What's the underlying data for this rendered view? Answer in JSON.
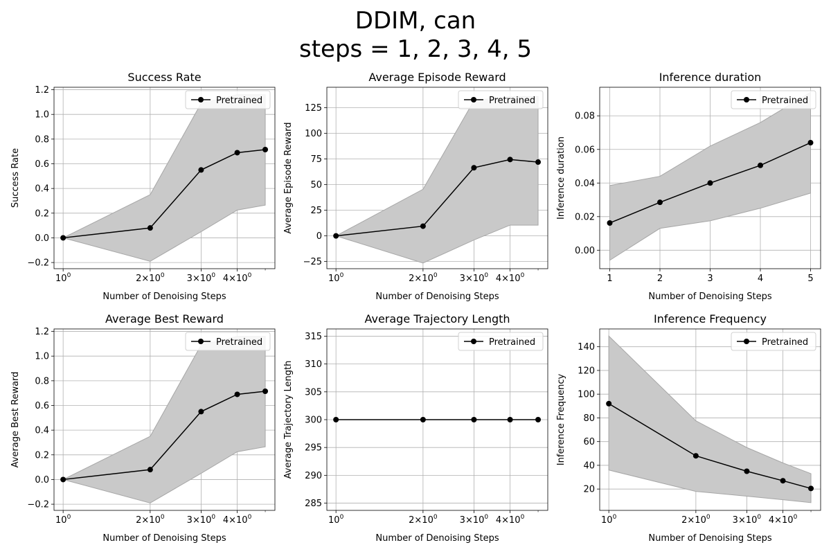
{
  "title_line1": "DDIM, can",
  "title_line2": "steps = 1, 2, 3, 4, 5",
  "colors": {
    "line": "#000000",
    "band": "#c9c9c9",
    "band_edge": "#a6a6a6",
    "grid": "#b0b0b0"
  },
  "chart_data": [
    {
      "type": "line",
      "title": "Success Rate",
      "xlabel": "Number of Denoising Steps",
      "ylabel": "Success Rate",
      "xscale": "log",
      "xlim": [
        0.93,
        5.4
      ],
      "ylim": [
        -0.25,
        1.22
      ],
      "xticks": [
        1,
        2,
        3,
        4
      ],
      "xticklabels": [
        "10^0",
        "2×10^0",
        "3×10^0",
        "4×10^0"
      ],
      "yticks": [
        -0.2,
        0.0,
        0.2,
        0.4,
        0.6,
        0.8,
        1.0,
        1.2
      ],
      "yticklabels": [
        "−0.2",
        "0.0",
        "0.2",
        "0.4",
        "0.6",
        "0.8",
        "1.0",
        "1.2"
      ],
      "grid": true,
      "legend": "top-right",
      "series": [
        {
          "name": "Pretrained",
          "x": [
            1,
            2,
            3,
            4,
            5
          ],
          "y": [
            0.0,
            0.08,
            0.55,
            0.69,
            0.715
          ],
          "band_low": [
            0.0,
            -0.19,
            0.05,
            0.225,
            0.265
          ],
          "band_high": [
            0.0,
            0.35,
            1.09,
            1.16,
            1.16
          ]
        }
      ]
    },
    {
      "type": "line",
      "title": "Average Episode Reward",
      "xlabel": "Number of Denoising Steps",
      "ylabel": "Average Episode Reward",
      "xscale": "log",
      "xlim": [
        0.93,
        5.4
      ],
      "ylim": [
        -32,
        145
      ],
      "xticks": [
        1,
        2,
        3,
        4
      ],
      "xticklabels": [
        "10^0",
        "2×10^0",
        "3×10^0",
        "4×10^0"
      ],
      "yticks": [
        -25,
        0,
        25,
        50,
        75,
        100,
        125
      ],
      "yticklabels": [
        "−25",
        "0",
        "25",
        "50",
        "75",
        "100",
        "125"
      ],
      "grid": true,
      "legend": "top-right",
      "series": [
        {
          "name": "Pretrained",
          "x": [
            1,
            2,
            3,
            4,
            5
          ],
          "y": [
            0,
            9.5,
            66.5,
            74.5,
            72
          ],
          "band_low": [
            0,
            -26.5,
            -4,
            10.5,
            10.5
          ],
          "band_high": [
            0,
            45.5,
            132,
            136,
            136
          ]
        }
      ]
    },
    {
      "type": "line",
      "title": "Inference duration",
      "xlabel": "Number of Denoising Steps",
      "ylabel": "Inference duration",
      "xscale": "linear",
      "xlim": [
        0.8,
        5.2
      ],
      "ylim": [
        -0.011,
        0.097
      ],
      "xticks": [
        1,
        2,
        3,
        4,
        5
      ],
      "xticklabels": [
        "1",
        "2",
        "3",
        "4",
        "5"
      ],
      "yticks": [
        0.0,
        0.02,
        0.04,
        0.06,
        0.08
      ],
      "yticklabels": [
        "0.00",
        "0.02",
        "0.04",
        "0.06",
        "0.08"
      ],
      "grid": true,
      "legend": "top-right",
      "series": [
        {
          "name": "Pretrained",
          "x": [
            1,
            2,
            3,
            4,
            5
          ],
          "y": [
            0.0162,
            0.0285,
            0.04,
            0.0505,
            0.064
          ],
          "band_low": [
            -0.006,
            0.013,
            0.0175,
            0.025,
            0.034
          ],
          "band_high": [
            0.0385,
            0.044,
            0.062,
            0.076,
            0.094
          ]
        }
      ]
    },
    {
      "type": "line",
      "title": "Average Best Reward",
      "xlabel": "Number of Denoising Steps",
      "ylabel": "Average Best Reward",
      "xscale": "log",
      "xlim": [
        0.93,
        5.4
      ],
      "ylim": [
        -0.25,
        1.22
      ],
      "xticks": [
        1,
        2,
        3,
        4
      ],
      "xticklabels": [
        "10^0",
        "2×10^0",
        "3×10^0",
        "4×10^0"
      ],
      "yticks": [
        -0.2,
        0.0,
        0.2,
        0.4,
        0.6,
        0.8,
        1.0,
        1.2
      ],
      "yticklabels": [
        "−0.2",
        "0.0",
        "0.2",
        "0.4",
        "0.6",
        "0.8",
        "1.0",
        "1.2"
      ],
      "grid": true,
      "legend": "top-right",
      "series": [
        {
          "name": "Pretrained",
          "x": [
            1,
            2,
            3,
            4,
            5
          ],
          "y": [
            0.0,
            0.08,
            0.55,
            0.69,
            0.715
          ],
          "band_low": [
            0.0,
            -0.19,
            0.05,
            0.225,
            0.265
          ],
          "band_high": [
            0.0,
            0.35,
            1.09,
            1.16,
            1.16
          ]
        }
      ]
    },
    {
      "type": "line",
      "title": "Average Trajectory Length",
      "xlabel": "Number of Denoising Steps",
      "ylabel": "Average Trajectory Length",
      "xscale": "log",
      "xlim": [
        0.93,
        5.4
      ],
      "ylim": [
        283.7,
        316.3
      ],
      "xticks": [
        1,
        2,
        3,
        4
      ],
      "xticklabels": [
        "10^0",
        "2×10^0",
        "3×10^0",
        "4×10^0"
      ],
      "yticks": [
        285,
        290,
        295,
        300,
        305,
        310,
        315
      ],
      "yticklabels": [
        "285",
        "290",
        "295",
        "300",
        "305",
        "310",
        "315"
      ],
      "grid": true,
      "legend": "top-right",
      "series": [
        {
          "name": "Pretrained",
          "x": [
            1,
            2,
            3,
            4,
            5
          ],
          "y": [
            300,
            300,
            300,
            300,
            300
          ],
          "band_low": [
            300,
            300,
            300,
            300,
            300
          ],
          "band_high": [
            300,
            300,
            300,
            300,
            300
          ]
        }
      ]
    },
    {
      "type": "line",
      "title": "Inference Frequency",
      "xlabel": "Number of Denoising Steps",
      "ylabel": "Inference Frequency",
      "xscale": "log",
      "xlim": [
        0.93,
        5.4
      ],
      "ylim": [
        2,
        155
      ],
      "xticks": [
        1,
        2,
        3,
        4
      ],
      "xticklabels": [
        "10^0",
        "2×10^0",
        "3×10^0",
        "4×10^0"
      ],
      "yticks": [
        20,
        40,
        60,
        80,
        100,
        120,
        140
      ],
      "yticklabels": [
        "20",
        "40",
        "60",
        "80",
        "100",
        "120",
        "140"
      ],
      "grid": true,
      "legend": "top-right",
      "series": [
        {
          "name": "Pretrained",
          "x": [
            1,
            2,
            3,
            4,
            5
          ],
          "y": [
            92,
            48,
            35,
            27,
            20.5
          ],
          "band_low": [
            36,
            18,
            14,
            11,
            8.5
          ],
          "band_high": [
            149,
            77.5,
            55,
            42,
            33
          ]
        }
      ]
    }
  ]
}
